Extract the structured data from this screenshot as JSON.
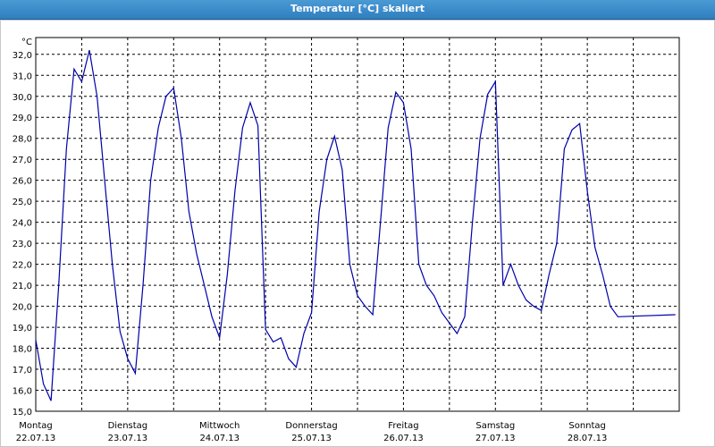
{
  "window": {
    "title": "Temperatur [°C] skaliert"
  },
  "chart_data": {
    "type": "line",
    "ylabel": "°C",
    "ylim": [
      15.0,
      32.8
    ],
    "yticks": [
      "15,0",
      "16,0",
      "17,0",
      "18,0",
      "19,0",
      "20,0",
      "21,0",
      "22,0",
      "23,0",
      "24,0",
      "25,0",
      "26,0",
      "27,0",
      "28,0",
      "29,0",
      "30,0",
      "31,0",
      "32,0"
    ],
    "days": [
      {
        "name": "Montag",
        "date": "22.07.13"
      },
      {
        "name": "Dienstag",
        "date": "23.07.13"
      },
      {
        "name": "Mittwoch",
        "date": "24.07.13"
      },
      {
        "name": "Donnerstag",
        "date": "25.07.13"
      },
      {
        "name": "Freitag",
        "date": "26.07.13"
      },
      {
        "name": "Samstag",
        "date": "27.07.13"
      },
      {
        "name": "Sonntag",
        "date": "28.07.13"
      }
    ],
    "grid": true,
    "line_color": "#0000aa",
    "x_hours_from_start": [
      0,
      2,
      4,
      6,
      8,
      10,
      12,
      14,
      16,
      18,
      20,
      22,
      24,
      26,
      28,
      30,
      32,
      34,
      36,
      38,
      40,
      42,
      44,
      46,
      48,
      50,
      52,
      54,
      56,
      58,
      60,
      62,
      64,
      66,
      68,
      70,
      72,
      74,
      76,
      78,
      80,
      82,
      84,
      86,
      88,
      90,
      92,
      94,
      96,
      98,
      100,
      102,
      104,
      106,
      108,
      110,
      112,
      114,
      116,
      118,
      120,
      122,
      124,
      126,
      128,
      130,
      132,
      134,
      136,
      138,
      140,
      142,
      144,
      146,
      148,
      150,
      152,
      154,
      156,
      158,
      160,
      162,
      164,
      166,
      167
    ],
    "values": [
      18.4,
      16.3,
      15.5,
      21.0,
      27.5,
      31.3,
      30.7,
      32.2,
      30.0,
      26.0,
      22.0,
      18.8,
      17.5,
      16.8,
      21.0,
      26.0,
      28.5,
      30.0,
      30.4,
      28.0,
      24.5,
      22.5,
      21.0,
      19.5,
      18.5,
      21.5,
      25.5,
      28.5,
      29.7,
      28.6,
      18.9,
      18.3,
      18.5,
      17.5,
      17.1,
      18.7,
      19.7,
      24.5,
      27.0,
      28.1,
      26.5,
      22.0,
      20.5,
      20.0,
      19.6,
      24.0,
      28.5,
      30.2,
      29.7,
      27.5,
      22.0,
      21.0,
      20.5,
      19.7,
      19.2,
      18.7,
      19.5,
      24.0,
      28.0,
      30.1,
      30.7,
      21.0,
      22.0,
      21.0,
      20.3,
      20.0,
      19.8,
      21.5,
      23.0,
      27.5,
      28.4,
      28.7,
      25.5,
      22.8,
      21.5,
      20.0,
      19.5,
      20.0,
      20.0,
      20.0,
      20.0,
      20.0,
      20.0,
      20.0,
      20.0
    ]
  }
}
